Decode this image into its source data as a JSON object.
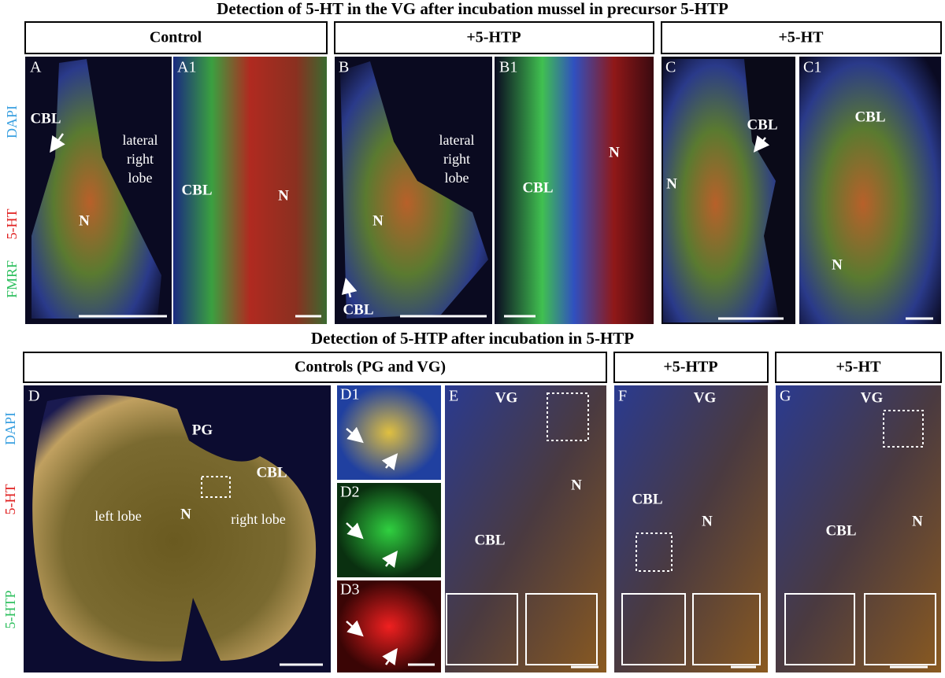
{
  "top": {
    "title": "Detection of 5-HT in the VG after incubation mussel in precursor 5-HTP",
    "groups": [
      "Control",
      "+5-HTP",
      "+5-HT"
    ],
    "channels": [
      "DAPI",
      "5-HT",
      "FMRF"
    ],
    "panels": [
      {
        "letter": "A",
        "labels": [
          "CBL",
          "lateral",
          "right",
          "lobe",
          "N"
        ]
      },
      {
        "letter": "A1",
        "labels": [
          "CBL",
          "N"
        ]
      },
      {
        "letter": "B",
        "labels": [
          "lateral",
          "right",
          "lobe",
          "N",
          "CBL"
        ]
      },
      {
        "letter": "B1",
        "labels": [
          "CBL",
          "N"
        ]
      },
      {
        "letter": "C",
        "labels": [
          "CBL",
          "N"
        ]
      },
      {
        "letter": "C1",
        "labels": [
          "CBL",
          "N"
        ]
      }
    ]
  },
  "bottom": {
    "title": "Detection of 5-HTP after incubation in 5-HTP",
    "groups": [
      "Controls (PG and VG)",
      "+5-HTP",
      "+5-HT"
    ],
    "channels": [
      "DAPI",
      "5-HT",
      "5-HTP"
    ],
    "panels": [
      {
        "letter": "D",
        "labels": [
          "PG",
          "CBL",
          "left lobe",
          "N",
          "right lobe"
        ]
      },
      {
        "letter": "D1",
        "labels": []
      },
      {
        "letter": "D2",
        "labels": []
      },
      {
        "letter": "D3",
        "labels": []
      },
      {
        "letter": "E",
        "labels": [
          "VG",
          "N",
          "CBL"
        ]
      },
      {
        "letter": "F",
        "labels": [
          "VG",
          "CBL",
          "N"
        ]
      },
      {
        "letter": "G",
        "labels": [
          "VG",
          "CBL",
          "N"
        ]
      }
    ]
  }
}
